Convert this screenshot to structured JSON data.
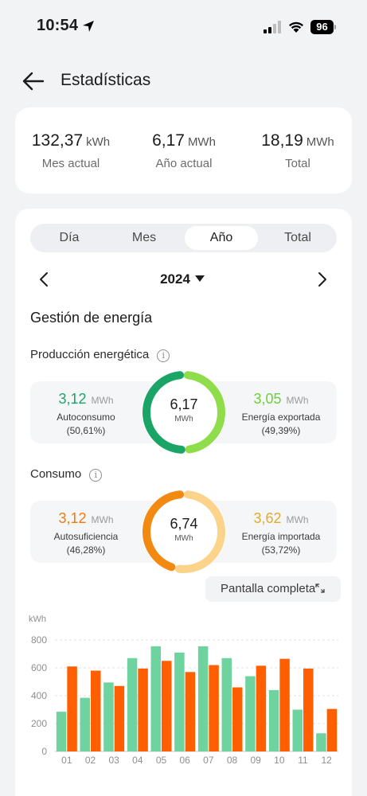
{
  "status": {
    "time": "10:54",
    "battery": "96"
  },
  "header": {
    "title": "Estadísticas"
  },
  "summary": [
    {
      "value": "132,37",
      "unit": "kWh",
      "label": "Mes actual"
    },
    {
      "value": "6,17",
      "unit": "MWh",
      "label": "Año actual"
    },
    {
      "value": "18,19",
      "unit": "MWh",
      "label": "Total"
    }
  ],
  "tabs": [
    {
      "label": "Día"
    },
    {
      "label": "Mes"
    },
    {
      "label": "Año",
      "active": true
    },
    {
      "label": "Total"
    }
  ],
  "year": "2024",
  "section_title": "Gestión de energía",
  "production": {
    "title": "Producción energética",
    "left": {
      "value": "3,12",
      "unit": "MWh",
      "label": "Autoconsumo",
      "pct": "(50,61%)",
      "color": "#1aa567"
    },
    "right": {
      "value": "3,05",
      "unit": "MWh",
      "label": "Energía exportada",
      "pct": "(49,39%)",
      "color": "#6ccf3a"
    },
    "center": {
      "value": "6,17",
      "unit": "MWh"
    },
    "fraction_left": 0.5061
  },
  "consumption": {
    "title": "Consumo",
    "left": {
      "value": "3,12",
      "unit": "MWh",
      "label": "Autosuficiencia",
      "pct": "(46,28%)",
      "color": "#f07a0a"
    },
    "right": {
      "value": "3,62",
      "unit": "MWh",
      "label": "Energía importada",
      "pct": "(53,72%)",
      "color": "#e3a92a"
    },
    "center": {
      "value": "6,74",
      "unit": "MWh"
    },
    "fraction_left": 0.4628
  },
  "fullscreen_label": "Pantalla completa",
  "colors": {
    "prod_left": "#1aa567",
    "prod_right": "#8fdd4a",
    "cons_left": "#f28a12",
    "cons_right": "#fcd38a",
    "bar_green": "#6fd3a0",
    "bar_orange": "#ff5f00"
  },
  "chart_data": {
    "type": "bar",
    "ylabel": "kWh",
    "ylim": [
      0,
      800
    ],
    "yticks": [
      0,
      200,
      400,
      600,
      800
    ],
    "categories": [
      "01",
      "02",
      "03",
      "04",
      "05",
      "06",
      "07",
      "08",
      "09",
      "10",
      "11",
      "12"
    ],
    "series": [
      {
        "values": [
          285,
          385,
          495,
          670,
          755,
          710,
          755,
          670,
          540,
          440,
          300,
          130
        ]
      },
      {
        "values": [
          610,
          580,
          470,
          595,
          650,
          570,
          620,
          460,
          615,
          665,
          595,
          305
        ]
      }
    ]
  }
}
